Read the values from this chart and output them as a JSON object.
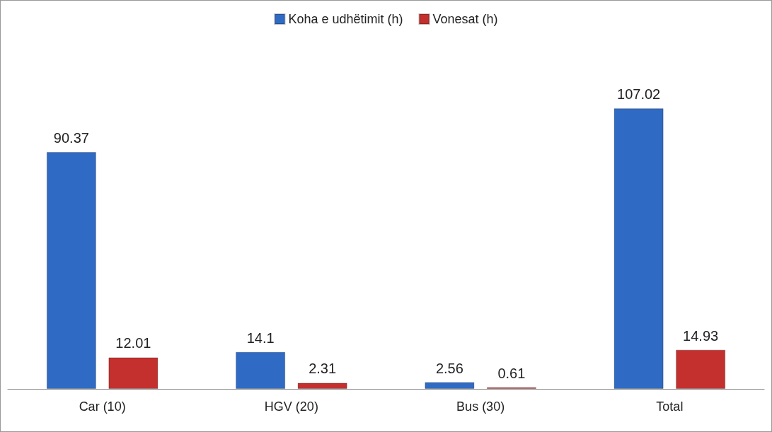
{
  "chart_data": {
    "type": "bar",
    "categories": [
      "Car (10)",
      "HGV (20)",
      "Bus (30)",
      "Total"
    ],
    "series": [
      {
        "name": "Koha e udhëtimit (h)",
        "color": "#2f6bc4",
        "values": [
          90.37,
          14.1,
          2.56,
          107.02
        ]
      },
      {
        "name": "Vonesat (h)",
        "color": "#c4302e",
        "values": [
          12.01,
          2.31,
          0.61,
          14.93
        ]
      }
    ],
    "data_labels": true,
    "legend": "top",
    "grid": false
  }
}
